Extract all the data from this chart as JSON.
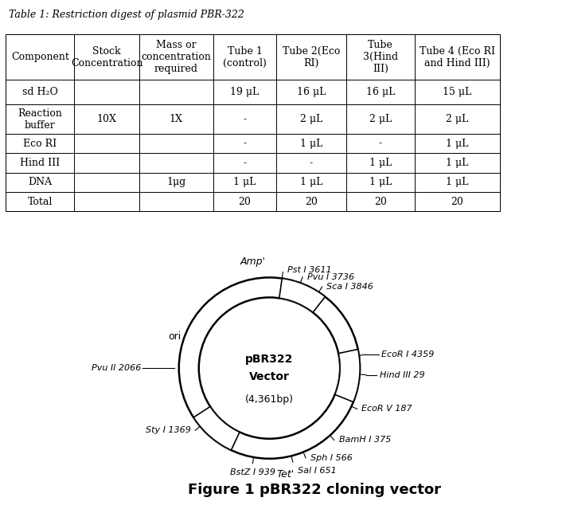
{
  "title": "Table 1: Restriction digest of plasmid PBR-322",
  "figure_caption": "Figure 1 pBR322 cloning vector",
  "table": {
    "col_headers": [
      "Component",
      "Stock\nConcentration",
      "Mass or\nconcentration\nrequired",
      "Tube 1\n(control)",
      "Tube 2(Eco\nRI)",
      "Tube\n3(Hind\nIII)",
      "Tube 4 (Eco RI\nand Hind III)"
    ],
    "rows": [
      [
        "sd H₂O",
        "",
        "",
        "19 μL",
        "16 μL",
        "16 μL",
        "15 μL"
      ],
      [
        "Reaction\nbuffer",
        "10X",
        "1X",
        "-",
        "2 μL",
        "2 μL",
        "2 μL"
      ],
      [
        "Eco RI",
        "",
        "",
        "-",
        "1 μL",
        "-",
        "1 μL"
      ],
      [
        "Hind III",
        "",
        "",
        "-",
        "-",
        "1 μL",
        "1 μL"
      ],
      [
        "DNA",
        "",
        "1μg",
        "1 μL",
        "1 μL",
        "1 μL",
        "1 μL"
      ],
      [
        "Total",
        "",
        "",
        "20",
        "20",
        "20",
        "20"
      ]
    ]
  },
  "bg_color": "#ffffff",
  "text_color": "#000000",
  "table_line_color": "#000000",
  "font_size_table": 9,
  "font_size_title": 9,
  "font_size_caption": 13
}
